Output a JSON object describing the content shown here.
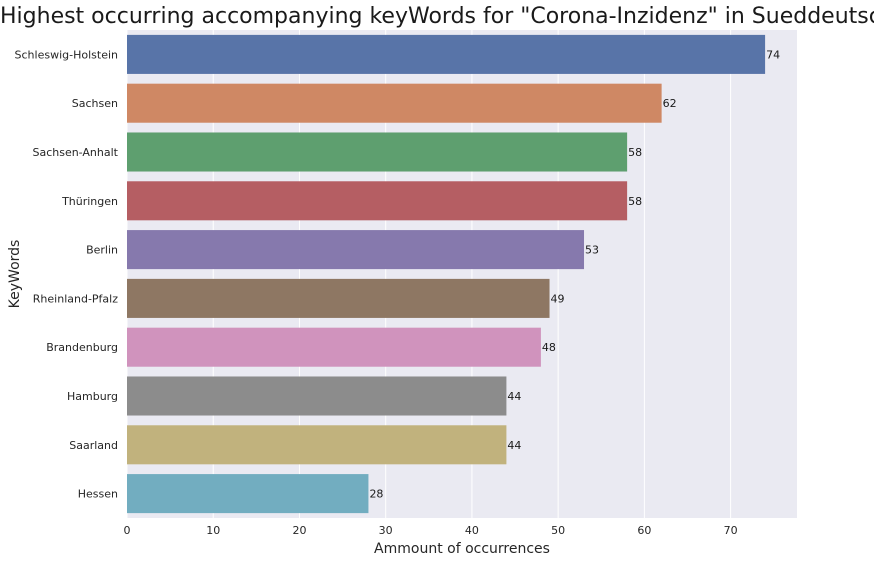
{
  "chart_data": {
    "type": "bar",
    "orientation": "horizontal",
    "title": "Highest occurring accompanying keyWords for \"Corona-Inzidenz\" in Sueddeutsche",
    "xlabel": "Ammount of occurrences",
    "ylabel": "KeyWords",
    "xlim": [
      0,
      77.7
    ],
    "xticks": [
      0,
      10,
      20,
      30,
      40,
      50,
      60,
      70
    ],
    "grid": true,
    "categories": [
      "Schleswig-Holstein",
      "Sachsen",
      "Sachsen-Anhalt",
      "Thüringen",
      "Berlin",
      "Rheinland-Pfalz",
      "Brandenburg",
      "Hamburg",
      "Saarland",
      "Hessen"
    ],
    "values": [
      74,
      62,
      58,
      58,
      53,
      49,
      48,
      44,
      44,
      28
    ],
    "colors": [
      "#5874a8",
      "#cf8864",
      "#5e9f6f",
      "#b55e63",
      "#8679ad",
      "#8e7763",
      "#d093bd",
      "#8c8c8c",
      "#c1b27d",
      "#72adc0"
    ],
    "background": "#eaeaf2"
  }
}
